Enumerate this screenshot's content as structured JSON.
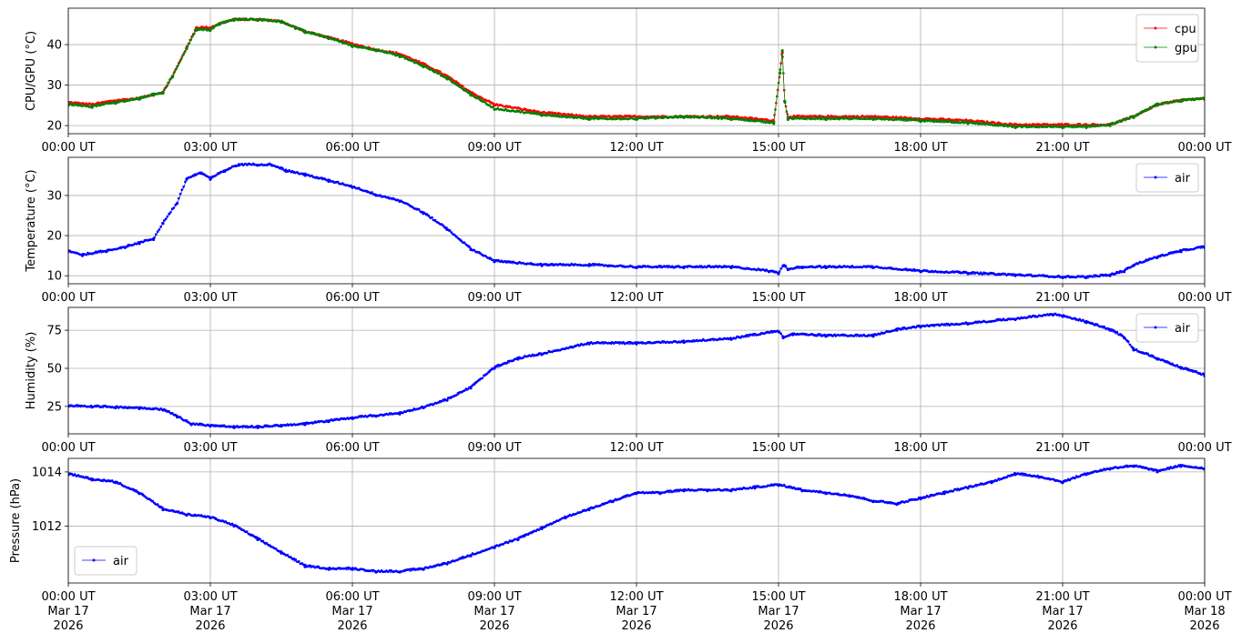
{
  "chart_data": [
    {
      "type": "line",
      "ylabel": "CPU/GPU (°C)",
      "ylim": [
        18,
        49
      ],
      "yticks": [
        20,
        30,
        40
      ],
      "xlim_hours": [
        0,
        24
      ],
      "xtick_labels": [
        "00:00 UT",
        "03:00 UT",
        "06:00 UT",
        "09:00 UT",
        "12:00 UT",
        "15:00 UT",
        "18:00 UT",
        "21:00 UT",
        "00:00 UT"
      ],
      "grid": true,
      "legend": {
        "placement": "upper-right",
        "entries": [
          "cpu",
          "gpu"
        ]
      },
      "x": [
        0,
        0.5,
        1,
        1.5,
        1.8,
        2,
        2.2,
        2.5,
        2.7,
        3,
        3.2,
        3.5,
        4,
        4.5,
        4.8,
        5,
        5.5,
        6,
        6.5,
        7,
        7.5,
        8,
        8.5,
        9,
        10,
        11,
        12,
        13,
        14,
        14.9,
        15.03,
        15.08,
        15.13,
        15.2,
        16,
        17,
        18,
        19,
        20,
        21,
        21.5,
        22,
        22.5,
        23,
        23.5,
        24
      ],
      "series": [
        {
          "name": "cpu",
          "color": "#ff0000",
          "values": [
            25.5,
            25,
            26,
            26.5,
            27.5,
            28,
            32,
            39,
            44,
            44,
            45,
            46,
            46,
            45.5,
            44,
            43,
            41.5,
            40,
            38.5,
            37.5,
            35,
            32,
            28,
            25,
            23,
            22,
            22,
            22,
            22,
            21,
            33,
            38,
            26,
            22,
            22,
            22,
            21.5,
            21,
            20,
            20,
            20,
            20,
            22,
            25,
            26,
            26.5
          ]
        },
        {
          "name": "gpu",
          "color": "#008000",
          "values": [
            25,
            24.5,
            25.5,
            26.5,
            27.5,
            28,
            32,
            39,
            43.5,
            43.5,
            45,
            46,
            46,
            45.5,
            44,
            43,
            41.5,
            39.5,
            38.5,
            37,
            34.5,
            31.5,
            27.5,
            24,
            22.5,
            21.5,
            21.5,
            22,
            21.5,
            20.5,
            33,
            38.5,
            26,
            21.5,
            21.5,
            21.5,
            21,
            20.5,
            19.5,
            19.5,
            19.5,
            20,
            22,
            25,
            26,
            26.5
          ]
        }
      ]
    },
    {
      "type": "line",
      "ylabel": "Temperature (°C)",
      "ylim": [
        8,
        39.5
      ],
      "yticks": [
        10,
        20,
        30
      ],
      "xlim_hours": [
        0,
        24
      ],
      "xtick_labels": [
        "00:00 UT",
        "03:00 UT",
        "06:00 UT",
        "09:00 UT",
        "12:00 UT",
        "15:00 UT",
        "18:00 UT",
        "21:00 UT",
        "00:00 UT"
      ],
      "grid": true,
      "legend": {
        "placement": "upper-right",
        "entries": [
          "air"
        ]
      },
      "x": [
        0,
        0.3,
        0.8,
        1.2,
        1.5,
        1.8,
        2,
        2.3,
        2.5,
        2.8,
        3,
        3.3,
        3.6,
        4,
        4.3,
        4.6,
        5,
        5.5,
        6,
        6.5,
        7,
        7.5,
        8,
        8.5,
        9,
        10,
        11,
        12,
        13,
        14,
        14.8,
        15,
        15.1,
        15.2,
        15.5,
        16,
        17,
        18,
        19,
        20,
        21,
        21.5,
        22,
        22.3,
        22.5,
        23,
        23.5,
        24
      ],
      "series": [
        {
          "name": "air",
          "color": "#0000ff",
          "values": [
            16,
            15,
            16,
            17,
            18,
            19,
            23,
            28,
            34,
            35.5,
            34,
            36,
            37.5,
            37.5,
            37.5,
            36,
            35,
            33.5,
            32,
            30,
            28.5,
            25.5,
            21.5,
            16.5,
            13.5,
            12.5,
            12.5,
            12,
            12,
            12,
            11,
            10.5,
            12.5,
            11.5,
            12,
            12,
            12,
            11,
            10.5,
            10,
            9.5,
            9.5,
            10,
            11,
            12.5,
            14.5,
            16,
            17
          ]
        }
      ]
    },
    {
      "type": "line",
      "ylabel": "Humidity (%)",
      "ylim": [
        7,
        90
      ],
      "yticks": [
        25,
        50,
        75
      ],
      "xlim_hours": [
        0,
        24
      ],
      "xtick_labels": [
        "00:00 UT",
        "03:00 UT",
        "06:00 UT",
        "09:00 UT",
        "12:00 UT",
        "15:00 UT",
        "18:00 UT",
        "21:00 UT",
        "00:00 UT"
      ],
      "grid": true,
      "legend": {
        "placement": "upper-right",
        "entries": [
          "air"
        ]
      },
      "x": [
        0,
        0.5,
        1,
        1.5,
        2,
        2.3,
        2.6,
        3,
        3.5,
        4,
        4.5,
        5,
        5.5,
        6,
        6.5,
        7,
        7.5,
        8,
        8.5,
        9,
        9.5,
        10,
        11,
        12,
        13,
        14,
        15,
        15.1,
        15.3,
        16,
        17,
        17.5,
        18,
        19,
        20,
        20.8,
        21,
        21.5,
        22,
        22.3,
        22.5,
        23,
        23.5,
        24
      ],
      "series": [
        {
          "name": "air",
          "color": "#0000ff",
          "values": [
            25,
            24.5,
            24,
            23.5,
            22.5,
            18,
            13,
            12,
            11,
            11,
            12,
            13,
            15,
            17,
            18.5,
            20,
            24,
            29,
            37,
            50,
            56,
            59,
            66,
            66,
            67,
            69,
            74,
            70,
            72,
            71,
            71,
            75,
            77,
            79,
            82,
            85,
            84,
            80,
            75,
            70,
            62,
            56,
            50,
            45
          ]
        }
      ]
    },
    {
      "type": "line",
      "ylabel": "Pressure (hPa)",
      "ylim": [
        1009.9,
        1014.5
      ],
      "yticks": [
        1012,
        1014
      ],
      "xlim_hours": [
        0,
        24
      ],
      "xtick_labels": [
        "00:00 UT\nMar 17\n2026",
        "03:00 UT\nMar 17\n2026",
        "06:00 UT\nMar 17\n2026",
        "09:00 UT\nMar 17\n2026",
        "12:00 UT\nMar 17\n2026",
        "15:00 UT\nMar 17\n2026",
        "18:00 UT\nMar 17\n2026",
        "21:00 UT\nMar 17\n2026",
        "00:00 UT\nMar 18\n2026"
      ],
      "grid": true,
      "legend": {
        "placement": "lower-left",
        "entries": [
          "air"
        ]
      },
      "x": [
        0,
        0.5,
        1,
        1.5,
        2,
        2.5,
        3,
        3.5,
        4,
        4.5,
        5,
        5.5,
        6,
        6.5,
        7,
        7.5,
        8,
        8.5,
        9,
        9.5,
        10,
        10.5,
        11,
        11.5,
        12,
        12.5,
        13,
        13.5,
        14,
        14.5,
        15,
        15.5,
        16,
        16.5,
        17,
        17.5,
        18,
        18.5,
        19,
        19.5,
        20,
        20.5,
        21,
        21.5,
        22,
        22.5,
        23,
        23.5,
        24
      ],
      "series": [
        {
          "name": "air",
          "color": "#0000ff",
          "values": [
            1013.9,
            1013.7,
            1013.6,
            1013.2,
            1012.6,
            1012.4,
            1012.3,
            1012.0,
            1011.5,
            1011.0,
            1010.5,
            1010.4,
            1010.4,
            1010.3,
            1010.3,
            1010.4,
            1010.6,
            1010.9,
            1011.2,
            1011.5,
            1011.9,
            1012.3,
            1012.6,
            1012.9,
            1013.2,
            1013.2,
            1013.3,
            1013.3,
            1013.3,
            1013.4,
            1013.5,
            1013.3,
            1013.2,
            1013.1,
            1012.9,
            1012.8,
            1013.0,
            1013.2,
            1013.4,
            1013.6,
            1013.9,
            1013.8,
            1013.6,
            1013.9,
            1014.1,
            1014.2,
            1014.0,
            1014.2,
            1014.1
          ]
        }
      ]
    }
  ]
}
